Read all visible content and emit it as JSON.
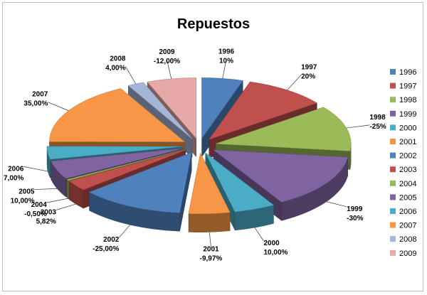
{
  "chart_data": {
    "type": "pie",
    "title": "Repuestos",
    "legend_position": "right",
    "categories": [
      "1996",
      "1997",
      "1998",
      "1999",
      "2000",
      "2001",
      "2002",
      "2003",
      "2004",
      "2005",
      "2006",
      "2007",
      "2008",
      "2009"
    ],
    "value_labels": [
      "10%",
      "20%",
      "-25%",
      "-30%",
      "10,00%",
      "-9,97%",
      "-25,00%",
      "5,82%",
      "-0,50%",
      "10,00%",
      "7,00%",
      "35,00%",
      "4,00%",
      "-12,00%"
    ],
    "values": [
      10,
      20,
      -25,
      -30,
      10,
      -9.97,
      -25,
      5.82,
      -0.5,
      10,
      7,
      35,
      4,
      -12
    ],
    "colors": [
      "#4f81bd",
      "#c0504d",
      "#9bbb59",
      "#8064a2",
      "#4bacc6",
      "#f79646",
      "#4f81bd",
      "#c0504d",
      "#9bbb59",
      "#8064a2",
      "#4bacc6",
      "#f79646",
      "#a5b5d8",
      "#e6a8a8"
    ]
  }
}
